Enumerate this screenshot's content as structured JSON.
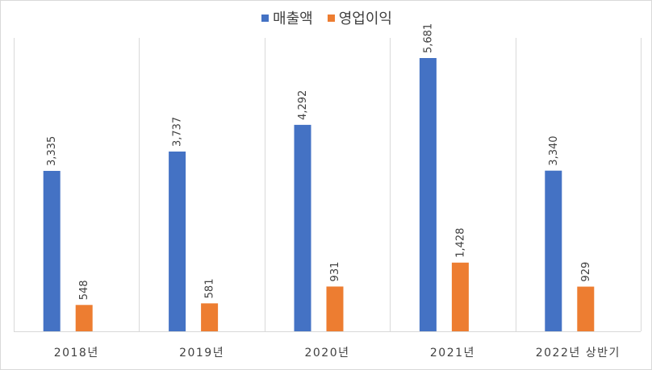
{
  "chart_data": {
    "type": "bar",
    "categories": [
      "2018년",
      "2019년",
      "2020년",
      "2021년",
      "2022년 상반기"
    ],
    "series": [
      {
        "name": "매출액",
        "values": [
          3335,
          3737,
          4292,
          5681,
          3340
        ],
        "labels": [
          "3,335",
          "3,737",
          "4,292",
          "5,681",
          "3,340"
        ],
        "color": "#4472C4"
      },
      {
        "name": "영업이익",
        "values": [
          548,
          581,
          931,
          1428,
          929
        ],
        "labels": [
          "548",
          "581",
          "931",
          "1,428",
          "929"
        ],
        "color": "#ED7D31"
      }
    ],
    "title": "",
    "xlabel": "",
    "ylabel": "",
    "ylim": [
      0,
      6000
    ],
    "grid": "vertical category separators",
    "legend": "top-center",
    "data_labels": "rotated vertical above bars"
  }
}
